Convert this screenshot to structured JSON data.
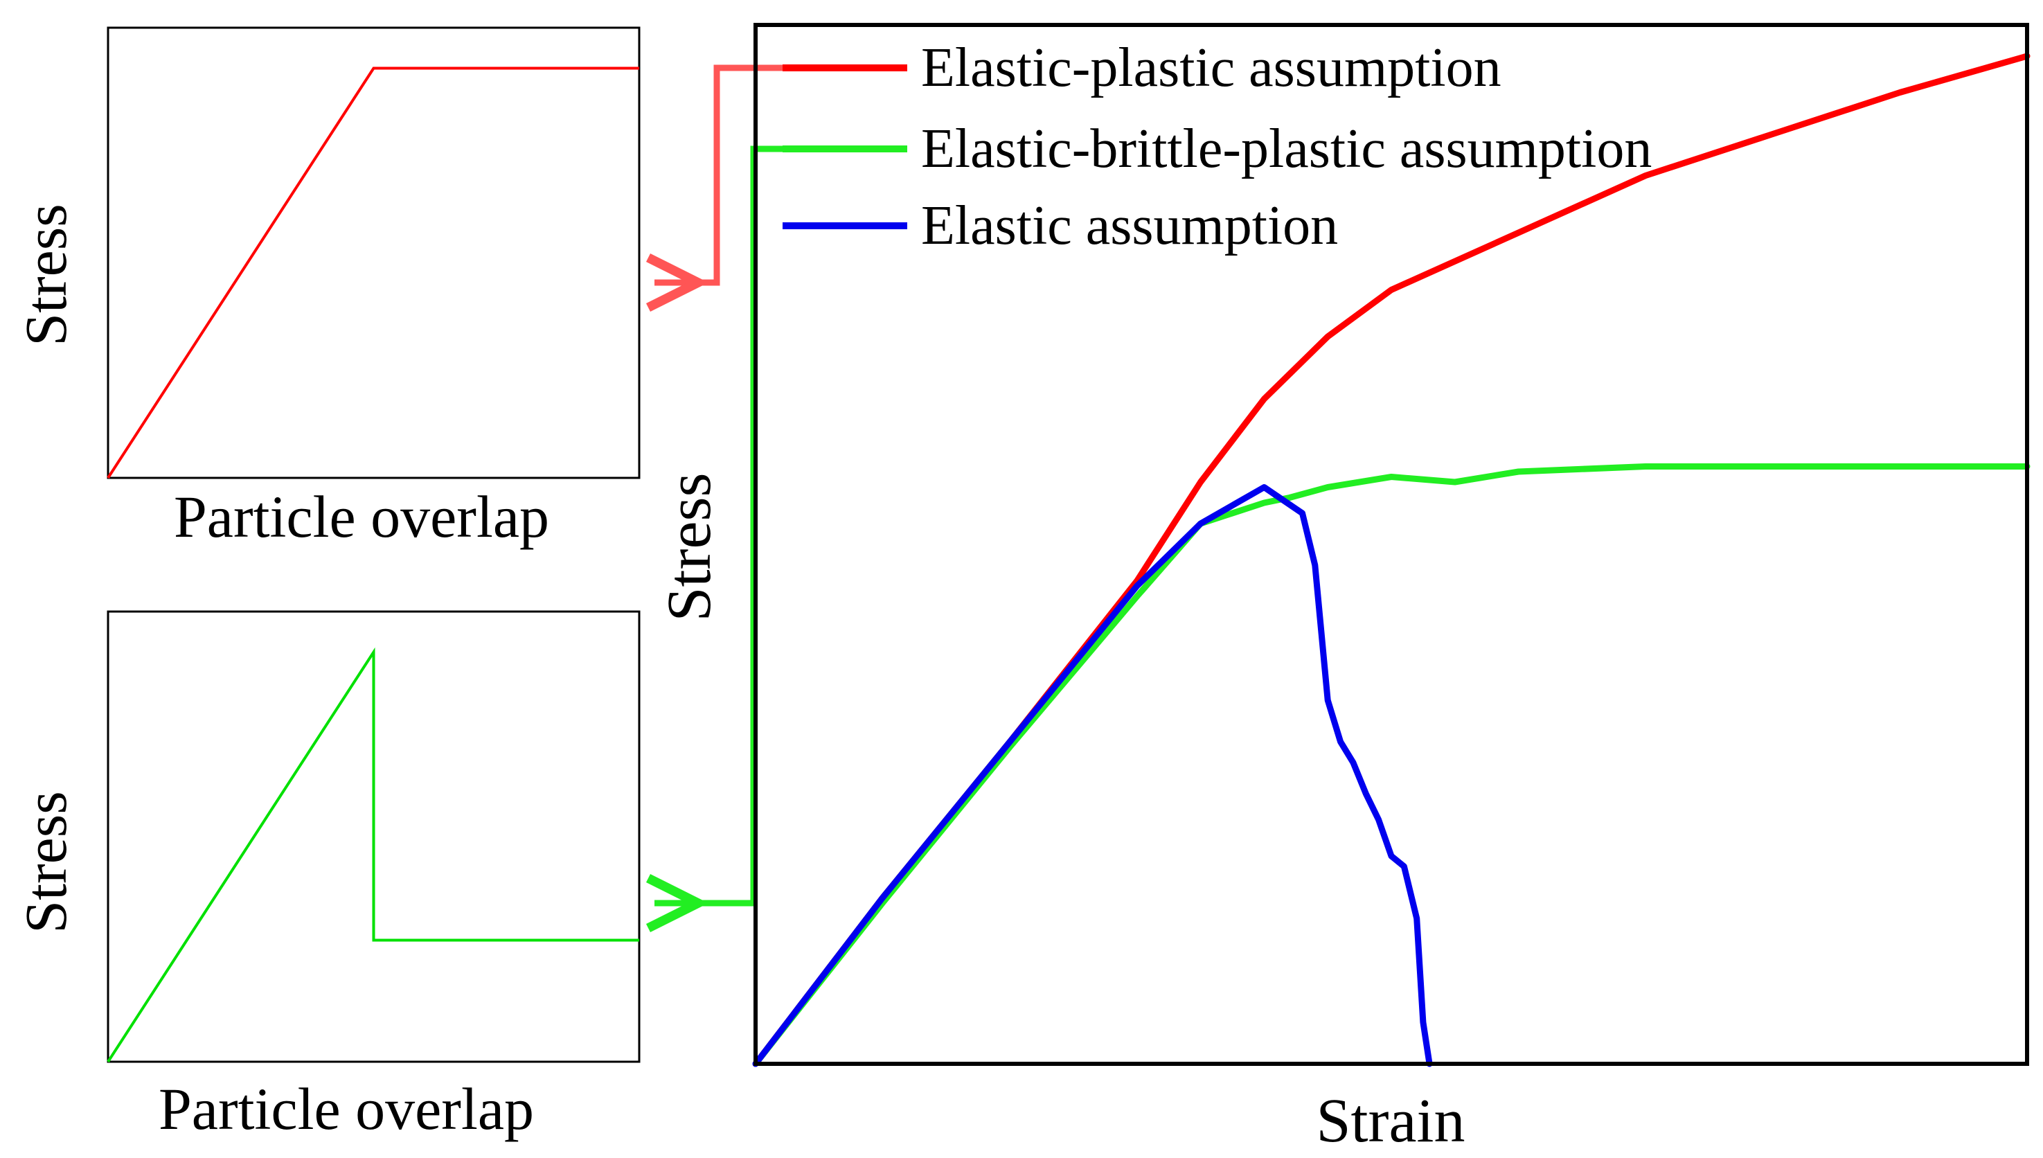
{
  "chart_data": [
    {
      "type": "line",
      "title": "",
      "xlabel": "Particle overlap",
      "ylabel": "Stress",
      "x_ticks": "none",
      "y_ticks": "none",
      "xlim": [
        0,
        1
      ],
      "ylim": [
        0,
        1
      ],
      "series": [
        {
          "name": "",
          "color": "#ff0000",
          "x": [
            0,
            0.5,
            1
          ],
          "y": [
            0,
            0.91,
            0.91
          ]
        }
      ]
    },
    {
      "type": "line",
      "title": "",
      "xlabel": "Particle overlap",
      "ylabel": "Stress",
      "x_ticks": "none",
      "y_ticks": "none",
      "xlim": [
        0,
        1
      ],
      "ylim": [
        0,
        1
      ],
      "series": [
        {
          "name": "",
          "color": "#00e000",
          "x": [
            0,
            0.5,
            0.5,
            1
          ],
          "y": [
            0,
            0.91,
            0.27,
            0.27
          ]
        }
      ]
    },
    {
      "type": "line",
      "title": "",
      "xlabel": "Strain",
      "ylabel": "Stress",
      "x_ticks": "none",
      "y_ticks": "none",
      "xlim": [
        0,
        1
      ],
      "ylim": [
        0,
        1
      ],
      "legend_position": "top-left",
      "series": [
        {
          "name": "Elastic-plastic assumption",
          "color": "#ff0000",
          "x": [
            0,
            0.1,
            0.2,
            0.3,
            0.35,
            0.4,
            0.45,
            0.5,
            0.6,
            0.7,
            0.8,
            0.9,
            1.0
          ],
          "y": [
            0,
            0.16,
            0.31,
            0.465,
            0.56,
            0.64,
            0.7,
            0.745,
            0.8,
            0.855,
            0.895,
            0.935,
            0.97
          ]
        },
        {
          "name": "Elastic-brittle-plastic assumption",
          "color": "#22ee22",
          "x": [
            0,
            0.1,
            0.2,
            0.3,
            0.35,
            0.4,
            0.42,
            0.45,
            0.5,
            0.55,
            0.6,
            0.7,
            0.8,
            0.9,
            1.0
          ],
          "y": [
            0,
            0.155,
            0.305,
            0.45,
            0.52,
            0.54,
            0.545,
            0.555,
            0.565,
            0.56,
            0.57,
            0.575,
            0.575,
            0.575,
            0.575
          ]
        },
        {
          "name": "Elastic assumption",
          "color": "#0000ee",
          "x": [
            0,
            0.1,
            0.2,
            0.3,
            0.35,
            0.4,
            0.43,
            0.44,
            0.45,
            0.46,
            0.47,
            0.48,
            0.49,
            0.5,
            0.51,
            0.52,
            0.525,
            0.53
          ],
          "y": [
            0,
            0.16,
            0.31,
            0.46,
            0.52,
            0.555,
            0.53,
            0.48,
            0.35,
            0.31,
            0.29,
            0.26,
            0.235,
            0.2,
            0.19,
            0.14,
            0.04,
            0
          ]
        }
      ]
    }
  ],
  "colors": {
    "plastic": "#ff0000",
    "plastic_connector": "#ff5555",
    "brittle": "#22ee22",
    "elastic": "#0000ee",
    "frame": "#000000"
  }
}
